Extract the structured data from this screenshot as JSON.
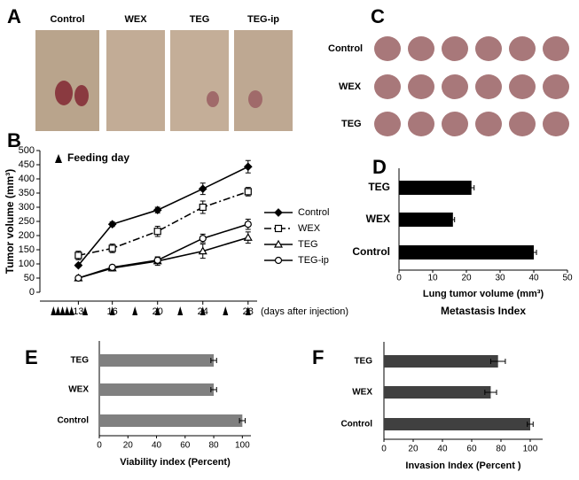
{
  "panels": {
    "A": {
      "label": "A",
      "photos": [
        "Control",
        "WEX",
        "TEG",
        "TEG-ip"
      ]
    },
    "C": {
      "label": "C",
      "rows": [
        "Control",
        "WEX",
        "TEG"
      ]
    }
  },
  "chart_data": [
    {
      "type": "line",
      "panel": "B",
      "annotation": "Feeding day",
      "x": [
        13,
        16,
        20,
        24,
        28
      ],
      "xlim": [
        9.6,
        28.8
      ],
      "xticks": [
        13,
        16,
        20,
        24,
        28
      ],
      "xlabel": "(days after injection)",
      "ylabel": "Tumor volume (mm³)",
      "ylim": [
        0,
        500
      ],
      "yticks": [
        0,
        50,
        100,
        150,
        200,
        250,
        300,
        350,
        400,
        450,
        500
      ],
      "feeding_days": [
        10.8,
        11.2,
        11.6,
        12,
        12.4,
        13.6,
        16,
        18,
        20,
        22,
        24,
        26,
        28
      ],
      "series": [
        {
          "name": "Control",
          "color": "#000000",
          "marker": "diamond",
          "marker_fill": "#000000",
          "line_style": "solid",
          "values": [
            95,
            240,
            290,
            365,
            443
          ],
          "errors": [
            5,
            8,
            10,
            20,
            22
          ]
        },
        {
          "name": "WEX",
          "color": "#000000",
          "marker": "square",
          "marker_fill": "#ffffff",
          "line_style": "dashdot",
          "values": [
            130,
            155,
            215,
            300,
            355
          ],
          "errors": [
            15,
            15,
            18,
            22,
            15
          ]
        },
        {
          "name": "TEG",
          "color": "#000000",
          "marker": "triangle",
          "marker_fill": "#ffffff",
          "line_style": "solid",
          "values": [
            50,
            85,
            110,
            145,
            193
          ],
          "errors": [
            5,
            10,
            15,
            25,
            20
          ]
        },
        {
          "name": "TEG-ip",
          "color": "#000000",
          "marker": "circle",
          "marker_fill": "#ffffff",
          "line_style": "solid",
          "values": [
            50,
            88,
            113,
            190,
            240
          ],
          "errors": [
            5,
            8,
            10,
            15,
            18
          ]
        }
      ]
    },
    {
      "type": "barh",
      "panel": "D",
      "title": "Metastasis Index",
      "xlabel": "Lung tumor volume (mm³)",
      "categories": [
        "Control",
        "WEX",
        "TEG"
      ],
      "values": [
        40,
        16,
        21.5
      ],
      "errors": [
        0.8,
        0.5,
        0.8
      ],
      "color": "#000000",
      "xlim": [
        0,
        50
      ],
      "xticks": [
        0,
        10,
        20,
        30,
        40,
        50
      ]
    },
    {
      "type": "barh",
      "panel": "E",
      "xlabel": "Viability index (Percent)",
      "categories": [
        "Control",
        "WEX",
        "TEG"
      ],
      "values": [
        100,
        80,
        80
      ],
      "errors": [
        2,
        2,
        2
      ],
      "color": "#808080",
      "xlim": [
        0,
        106
      ],
      "xticks": [
        0,
        20,
        40,
        60,
        80,
        100
      ]
    },
    {
      "type": "barh",
      "panel": "F",
      "xlabel": "Invasion Index (Percent )",
      "categories": [
        "Control",
        "WEX",
        "TEG"
      ],
      "values": [
        100,
        73,
        78
      ],
      "errors": [
        2,
        4,
        5
      ],
      "color": "#404040",
      "xlim": [
        0,
        108.5
      ],
      "xticks": [
        0,
        20,
        40,
        60,
        80,
        100
      ]
    }
  ]
}
